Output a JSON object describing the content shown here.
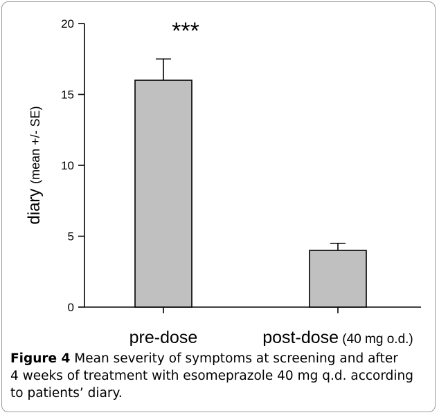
{
  "chart_data": {
    "type": "bar",
    "categories": [
      "pre-dose",
      "post-dose"
    ],
    "category_suffixes": [
      "",
      "(40 mg o.d.)"
    ],
    "values": [
      16,
      4
    ],
    "errors": [
      1.5,
      0.5
    ],
    "significance": [
      "***",
      ""
    ],
    "ylabel_main": "diary",
    "ylabel_suffix": "(mean +/- SE)",
    "ylim": [
      0,
      20
    ],
    "yticks": [
      0,
      5,
      10,
      15,
      20
    ],
    "bar_color": "#c0c0c0",
    "grid": false
  },
  "caption": {
    "label": "Figure 4",
    "lines": [
      "Mean severity of symptoms at screening and after",
      "4 weeks of treatment with esomeprazole 40 mg q.d. according",
      "to patients’ diary."
    ]
  }
}
